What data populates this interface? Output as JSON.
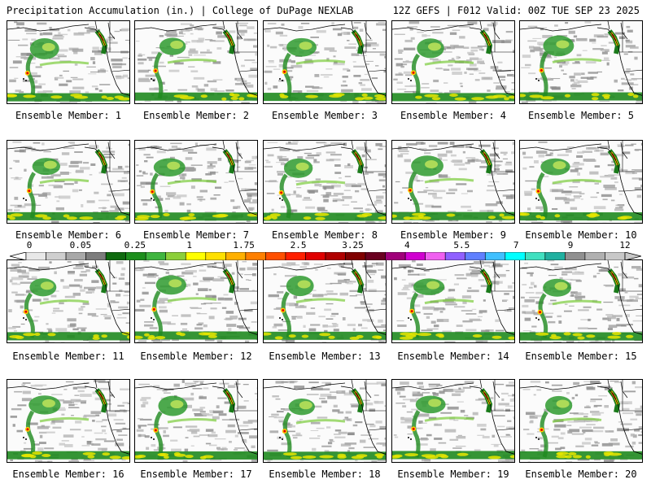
{
  "header": {
    "left": "Precipitation Accumulation (in.) | College of DuPage NEXLAB",
    "right": "12Z GEFS | F012 Valid: 00Z TUE SEP 23 2025"
  },
  "colorbar": {
    "labels": [
      "0",
      "0.05",
      "0.25",
      "1",
      "1.75",
      "2.5",
      "3.25",
      "4",
      "5.5",
      "7",
      "9",
      "12"
    ],
    "colors": [
      "#e8e8e8",
      "#cfcfcf",
      "#a8a8a8",
      "#7d7d7d",
      "#0f6b0f",
      "#1d8f1d",
      "#3fb53f",
      "#8ccf3a",
      "#ffff00",
      "#ffe000",
      "#ffb000",
      "#ff8000",
      "#ff5000",
      "#ff2000",
      "#e00000",
      "#b00000",
      "#800000",
      "#6a0020",
      "#a0007a",
      "#d000d0",
      "#f060f0",
      "#9060ff",
      "#6080ff",
      "#40c0ff",
      "#00ffff",
      "#40e0c0",
      "#20b0a0",
      "#909090",
      "#b0b0b0",
      "#c8c8c8"
    ]
  },
  "panels": [
    {
      "label": "Ensemble Member: 1"
    },
    {
      "label": "Ensemble Member: 2"
    },
    {
      "label": "Ensemble Member: 3"
    },
    {
      "label": "Ensemble Member: 4"
    },
    {
      "label": "Ensemble Member: 5"
    },
    {
      "label": "Ensemble Member: 6"
    },
    {
      "label": "Ensemble Member: 7"
    },
    {
      "label": "Ensemble Member: 8"
    },
    {
      "label": "Ensemble Member: 9"
    },
    {
      "label": "Ensemble Member: 10"
    },
    {
      "label": "Ensemble Member: 11"
    },
    {
      "label": "Ensemble Member: 12"
    },
    {
      "label": "Ensemble Member: 13"
    },
    {
      "label": "Ensemble Member: 14"
    },
    {
      "label": "Ensemble Member: 15"
    },
    {
      "label": "Ensemble Member: 16"
    },
    {
      "label": "Ensemble Member: 17"
    },
    {
      "label": "Ensemble Member: 18"
    },
    {
      "label": "Ensemble Member: 19"
    },
    {
      "label": "Ensemble Member: 20"
    }
  ]
}
